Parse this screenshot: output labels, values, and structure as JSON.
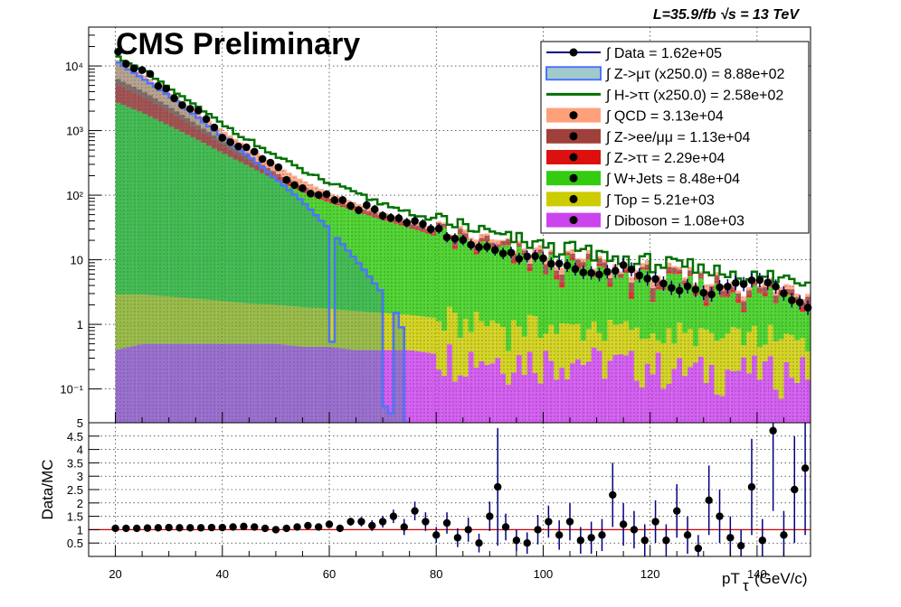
{
  "colors": {
    "data": "#000000",
    "data_line": "#000080",
    "ztau_mutau": "#4d74ff",
    "ztau_mutau_fill": "#2e8b8b",
    "htt": "#007000",
    "qcd": "#ffa07a",
    "zll": "#a0403a",
    "ztt": "#dd1010",
    "wjets": "#33cc11",
    "top": "#cccc00",
    "diboson": "#cc44ee",
    "ratio_line": "#cc0000"
  },
  "header": {
    "cms_label": "CMS Preliminary",
    "lumi_text": "L=35.9/fb  √s = 13 TeV"
  },
  "chart_data": [
    {
      "type": "bar",
      "subtype": "stacked-histogram-log",
      "title": "",
      "xlabel": "pT_τ (GeV/c)",
      "ylabel": "",
      "xlim": [
        15,
        150
      ],
      "ylim": [
        0.03,
        40000
      ],
      "yscale": "log",
      "x_ticks": [
        20,
        40,
        60,
        80,
        100,
        120,
        140
      ],
      "y_ticks": [
        {
          "value": 0.1,
          "label": "10⁻¹"
        },
        {
          "value": 1,
          "label": "1"
        },
        {
          "value": 10,
          "label": "10"
        },
        {
          "value": 100,
          "label": "10²"
        },
        {
          "value": 1000,
          "label": "10³"
        },
        {
          "value": 10000,
          "label": "10⁴"
        }
      ],
      "legend_position": "top-right",
      "legend": [
        {
          "key": "data",
          "label": "∫ Data = 1.62e+05"
        },
        {
          "key": "ztau_mutau",
          "label": "∫ Z->μτ (x250.0) = 8.88e+02"
        },
        {
          "key": "htt",
          "label": "∫ H->ττ (x250.0) = 2.58e+02"
        },
        {
          "key": "qcd",
          "label": "∫ QCD = 3.13e+04"
        },
        {
          "key": "zll",
          "label": "∫ Z->ee/μμ = 1.13e+04"
        },
        {
          "key": "ztt",
          "label": "∫ Z->ττ = 2.29e+04"
        },
        {
          "key": "wjets",
          "label": "∫ W+Jets = 8.48e+04"
        },
        {
          "key": "top",
          "label": "∫ Top = 5.21e+03"
        },
        {
          "key": "diboson",
          "label": "∫ Diboson = 1.08e+03"
        }
      ],
      "x": [
        20,
        25,
        30,
        35,
        40,
        45,
        50,
        55,
        60,
        65,
        70,
        75,
        80,
        85,
        90,
        95,
        100,
        105,
        110,
        115,
        120,
        125,
        130,
        135,
        140,
        145,
        150
      ],
      "series": [
        {
          "name": "Data",
          "values": [
            16000,
            8000,
            4200,
            2000,
            900,
            500,
            260,
            120,
            100,
            70,
            55,
            40,
            30,
            20,
            15,
            12,
            10,
            8,
            6,
            8,
            5,
            4,
            3,
            4,
            5,
            3,
            2
          ]
        },
        {
          "name": "Diboson",
          "values": [
            0.4,
            0.5,
            0.5,
            0.5,
            0.5,
            0.5,
            0.5,
            0.45,
            0.45,
            0.4,
            0.4,
            0.4,
            0.35,
            0.35,
            0.3,
            0.3,
            0.3,
            0.3,
            0.28,
            0.25,
            0.25,
            0.2,
            0.2,
            0.2,
            0.2,
            0.2,
            0.2
          ]
        },
        {
          "name": "Top",
          "values": [
            2.5,
            2.4,
            2.2,
            2.0,
            1.8,
            1.6,
            1.5,
            1.4,
            1.3,
            1.2,
            1.1,
            1.0,
            0.9,
            0.85,
            0.8,
            0.75,
            0.7,
            0.65,
            0.6,
            0.55,
            0.5,
            0.5,
            0.45,
            0.45,
            0.4,
            0.4,
            0.4
          ]
        },
        {
          "name": "W+Jets",
          "values": [
            2800,
            1900,
            1200,
            750,
            450,
            280,
            170,
            110,
            75,
            55,
            40,
            30,
            22,
            17,
            13,
            10,
            8,
            6.5,
            5.5,
            4.5,
            4,
            3.3,
            2.8,
            2.5,
            2.2,
            2,
            1.8
          ]
        },
        {
          "name": "Z->ττ",
          "values": [
            2500,
            1500,
            800,
            350,
            150,
            60,
            25,
            10,
            5,
            3,
            2,
            1.6,
            1.3,
            1.1,
            0.9,
            0.8,
            0.7,
            0.6,
            0.5,
            0.45,
            0.4,
            0.35,
            0.3,
            0.3,
            0.25,
            0.25,
            0.2
          ]
        },
        {
          "name": "Z->ee/μμ",
          "values": [
            1300,
            750,
            400,
            200,
            100,
            50,
            26,
            14,
            9,
            6,
            4.5,
            3.5,
            3,
            2.5,
            2,
            1.8,
            1.6,
            1.4,
            1.2,
            1,
            0.9,
            0.8,
            0.7,
            0.6,
            0.5,
            0.5,
            0.4
          ]
        },
        {
          "name": "QCD",
          "values": [
            6500,
            3500,
            1600,
            700,
            320,
            150,
            70,
            35,
            18,
            10,
            6,
            4,
            3,
            2.4,
            2,
            1.7,
            1.5,
            1.3,
            1.1,
            1,
            0.9,
            0.8,
            0.7,
            0.6,
            0.5,
            0.45,
            0.4
          ]
        },
        {
          "name": "Z->μτ (x250.0)",
          "values": [
            12000,
            6500,
            3500,
            1700,
            800,
            400,
            180,
            80,
            30,
            10,
            3,
            0,
            0,
            0,
            0,
            0,
            0,
            0,
            0,
            0,
            0,
            0,
            0,
            0,
            0,
            0,
            0
          ]
        },
        {
          "name": "H->ττ (x250.0)",
          "values": [
            1400,
            900,
            600,
            400,
            260,
            170,
            110,
            70,
            45,
            30,
            20,
            14,
            10,
            8,
            6,
            5,
            4,
            3.5,
            3,
            2.5,
            2.2,
            2,
            1.8,
            1.6,
            1.5,
            1.4,
            1.3
          ]
        }
      ]
    },
    {
      "type": "scatter",
      "subtype": "ratio",
      "xlabel": "pT_τ (GeV/c)",
      "ylabel": "Data/MC",
      "xlim": [
        15,
        150
      ],
      "ylim": [
        0,
        5
      ],
      "x_ticks": [
        20,
        40,
        60,
        80,
        100,
        120,
        140
      ],
      "y_ticks": [
        "0.5",
        "1",
        "1.5",
        "2",
        "2.5",
        "3",
        "3.5",
        "4",
        "4.5",
        "5"
      ],
      "reference_line": 1,
      "points": [
        {
          "x": 20,
          "y": 1.05,
          "err": 0.05
        },
        {
          "x": 22,
          "y": 1.05,
          "err": 0.05
        },
        {
          "x": 24,
          "y": 1.05,
          "err": 0.05
        },
        {
          "x": 26,
          "y": 1.06,
          "err": 0.05
        },
        {
          "x": 28,
          "y": 1.07,
          "err": 0.05
        },
        {
          "x": 30,
          "y": 1.08,
          "err": 0.05
        },
        {
          "x": 32,
          "y": 1.07,
          "err": 0.05
        },
        {
          "x": 34,
          "y": 1.07,
          "err": 0.05
        },
        {
          "x": 36,
          "y": 1.07,
          "err": 0.05
        },
        {
          "x": 38,
          "y": 1.08,
          "err": 0.05
        },
        {
          "x": 40,
          "y": 1.08,
          "err": 0.06
        },
        {
          "x": 42,
          "y": 1.1,
          "err": 0.06
        },
        {
          "x": 44,
          "y": 1.12,
          "err": 0.06
        },
        {
          "x": 46,
          "y": 1.1,
          "err": 0.07
        },
        {
          "x": 48,
          "y": 1.05,
          "err": 0.07
        },
        {
          "x": 50,
          "y": 1.0,
          "err": 0.08
        },
        {
          "x": 52,
          "y": 1.05,
          "err": 0.08
        },
        {
          "x": 54,
          "y": 1.1,
          "err": 0.1
        },
        {
          "x": 56,
          "y": 1.15,
          "err": 0.1
        },
        {
          "x": 58,
          "y": 1.1,
          "err": 0.12
        },
        {
          "x": 60,
          "y": 1.2,
          "err": 0.12
        },
        {
          "x": 62,
          "y": 1.05,
          "err": 0.14
        },
        {
          "x": 64,
          "y": 1.3,
          "err": 0.15
        },
        {
          "x": 66,
          "y": 1.3,
          "err": 0.18
        },
        {
          "x": 68,
          "y": 1.15,
          "err": 0.2
        },
        {
          "x": 70,
          "y": 1.3,
          "err": 0.22
        },
        {
          "x": 72,
          "y": 1.5,
          "err": 0.25
        },
        {
          "x": 74,
          "y": 1.1,
          "err": 0.3
        },
        {
          "x": 76,
          "y": 1.7,
          "err": 0.35
        },
        {
          "x": 78,
          "y": 1.3,
          "err": 0.35
        },
        {
          "x": 80,
          "y": 0.8,
          "err": 0.3
        },
        {
          "x": 82,
          "y": 1.25,
          "err": 0.4
        },
        {
          "x": 84,
          "y": 0.7,
          "err": 0.35
        },
        {
          "x": 86,
          "y": 1.0,
          "err": 0.45
        },
        {
          "x": 88,
          "y": 0.5,
          "err": 0.35
        },
        {
          "x": 90,
          "y": 1.5,
          "err": 0.55
        },
        {
          "x": 91.5,
          "y": 2.6,
          "err": 2.2
        },
        {
          "x": 93,
          "y": 1.1,
          "err": 0.5
        },
        {
          "x": 95,
          "y": 0.6,
          "err": 0.4
        },
        {
          "x": 97,
          "y": 0.5,
          "err": 0.4
        },
        {
          "x": 99,
          "y": 1.0,
          "err": 0.55
        },
        {
          "x": 101,
          "y": 1.3,
          "err": 0.6
        },
        {
          "x": 103,
          "y": 0.8,
          "err": 0.55
        },
        {
          "x": 105,
          "y": 1.3,
          "err": 0.7
        },
        {
          "x": 107,
          "y": 0.6,
          "err": 0.5
        },
        {
          "x": 109,
          "y": 0.7,
          "err": 0.6
        },
        {
          "x": 111,
          "y": 0.8,
          "err": 0.6
        },
        {
          "x": 113,
          "y": 2.3,
          "err": 1.2
        },
        {
          "x": 115,
          "y": 1.2,
          "err": 0.8
        },
        {
          "x": 117,
          "y": 1.0,
          "err": 0.7
        },
        {
          "x": 119,
          "y": 0.6,
          "err": 0.6
        },
        {
          "x": 121,
          "y": 1.3,
          "err": 0.8
        },
        {
          "x": 123,
          "y": 0.6,
          "err": 0.6
        },
        {
          "x": 125,
          "y": 1.7,
          "err": 1.0
        },
        {
          "x": 127,
          "y": 0.8,
          "err": 0.7
        },
        {
          "x": 129,
          "y": 0.3,
          "err": 0.5
        },
        {
          "x": 131,
          "y": 2.1,
          "err": 1.3
        },
        {
          "x": 133,
          "y": 1.5,
          "err": 1.0
        },
        {
          "x": 135,
          "y": 0.7,
          "err": 0.8
        },
        {
          "x": 137,
          "y": 0.4,
          "err": 0.6
        },
        {
          "x": 139,
          "y": 2.6,
          "err": 1.8
        },
        {
          "x": 141,
          "y": 0.6,
          "err": 0.8
        },
        {
          "x": 143,
          "y": 4.7,
          "err": 3.0
        },
        {
          "x": 145,
          "y": 0.8,
          "err": 0.9
        },
        {
          "x": 147,
          "y": 2.5,
          "err": 2.0
        },
        {
          "x": 149,
          "y": 3.3,
          "err": 2.5
        }
      ]
    }
  ]
}
